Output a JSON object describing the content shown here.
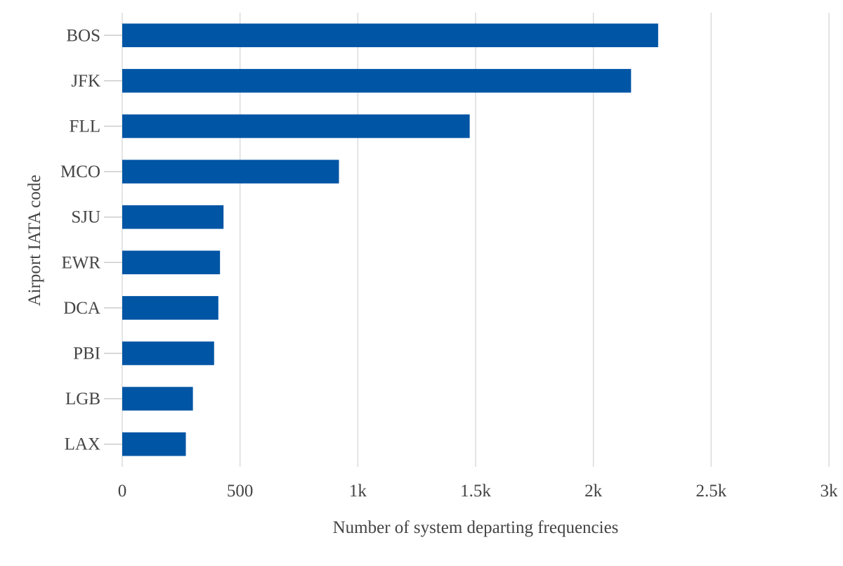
{
  "chart_data": {
    "type": "bar",
    "orientation": "horizontal",
    "categories": [
      "BOS",
      "JFK",
      "FLL",
      "MCO",
      "SJU",
      "EWR",
      "DCA",
      "PBI",
      "LGB",
      "LAX"
    ],
    "values": [
      2275,
      2160,
      1475,
      920,
      430,
      415,
      408,
      390,
      300,
      270
    ],
    "xlabel": "Number of system departing frequencies",
    "ylabel": "Airport IATA code",
    "xlim": [
      0,
      3000
    ],
    "x_ticks": [
      0,
      500,
      1000,
      1500,
      2000,
      2500,
      3000
    ],
    "x_tick_labels": [
      "0",
      "500",
      "1k",
      "1.5k",
      "2k",
      "2.5k",
      "3k"
    ],
    "grid": "vertical",
    "legend": "none",
    "bar_color": "#0055a5"
  }
}
